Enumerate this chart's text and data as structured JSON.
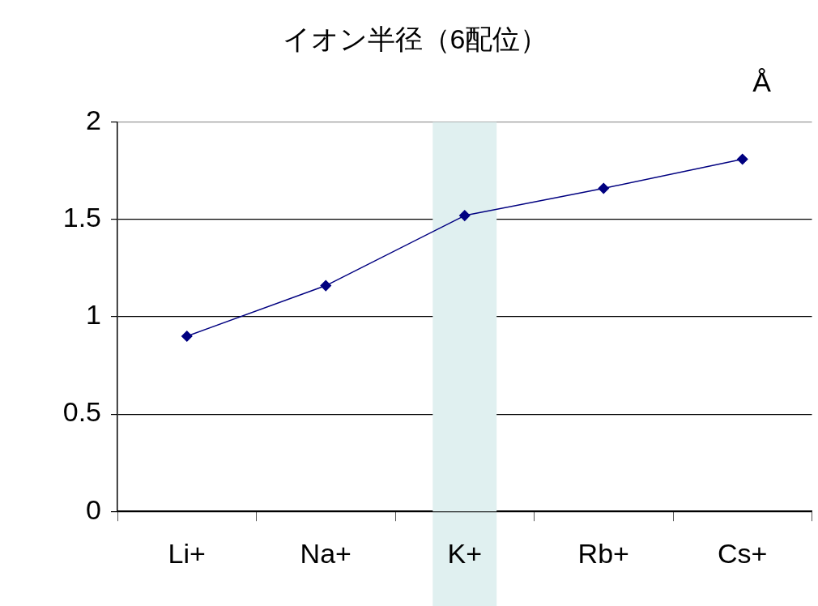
{
  "chart_data": {
    "type": "line",
    "title": "イオン半径（6配位）",
    "annotations": [
      "Å"
    ],
    "categories": [
      "Li+",
      "Na+",
      "K+",
      "Rb+",
      "Cs+"
    ],
    "series": [
      {
        "color": "#000080",
        "values": [
          0.9,
          1.16,
          1.52,
          1.66,
          1.81
        ]
      }
    ],
    "ylim": [
      0,
      2
    ],
    "yticks": [
      0,
      0.5,
      1,
      1.5,
      2
    ],
    "grid": "y",
    "legend": false,
    "marker": "diamond",
    "line_style": "solid",
    "bands": [
      {
        "axis": "x",
        "from": "K+",
        "to": "K+",
        "color": "#e0f0f0"
      }
    ]
  }
}
